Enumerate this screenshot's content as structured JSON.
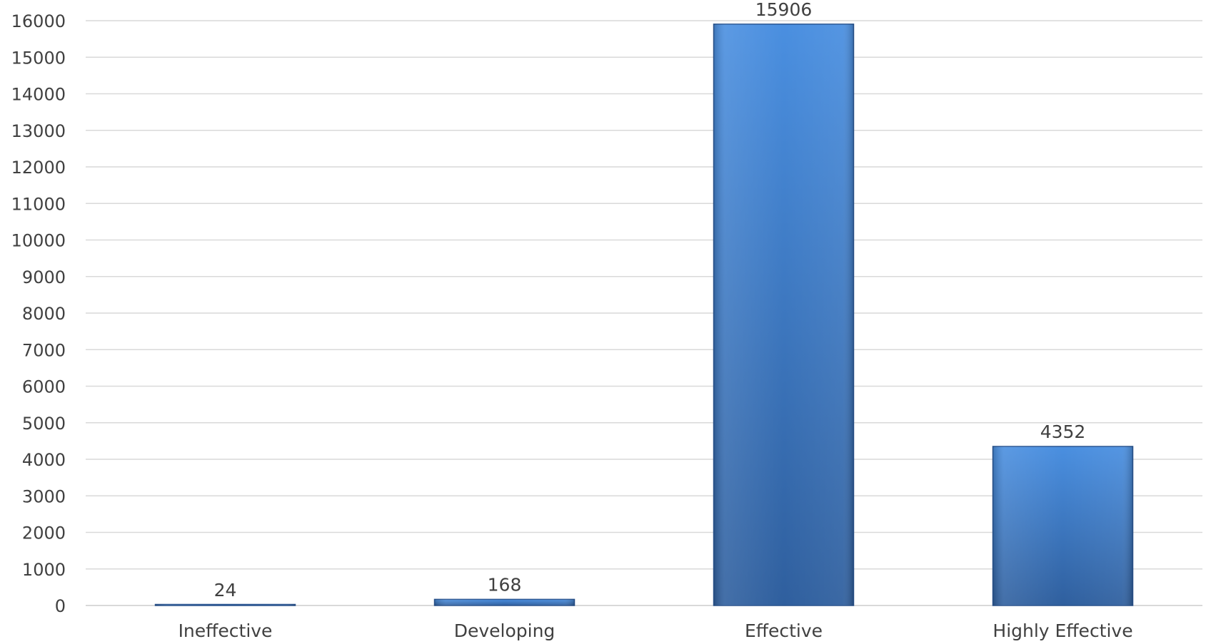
{
  "chart_data": {
    "type": "bar",
    "categories": [
      "Ineffective",
      "Developing",
      "Effective",
      "Highly Effective"
    ],
    "values": [
      24,
      168,
      15906,
      4352
    ],
    "data_labels": [
      "24",
      "168",
      "15906",
      "4352"
    ],
    "title": "",
    "xlabel": "",
    "ylabel": "",
    "ylim": [
      0,
      16000
    ],
    "ytick_step": 1000,
    "yticks": [
      "0",
      "1000",
      "2000",
      "3000",
      "4000",
      "5000",
      "6000",
      "7000",
      "8000",
      "9000",
      "10000",
      "11000",
      "12000",
      "13000",
      "14000",
      "15000",
      "16000"
    ],
    "grid": true,
    "legend": "none",
    "colors": {
      "bar_light": "#4a8fe0",
      "bar_dark": "#2f5f9e",
      "bar_edge": "#2a5591",
      "grid": "#d9d9d9",
      "text": "#404040"
    }
  }
}
